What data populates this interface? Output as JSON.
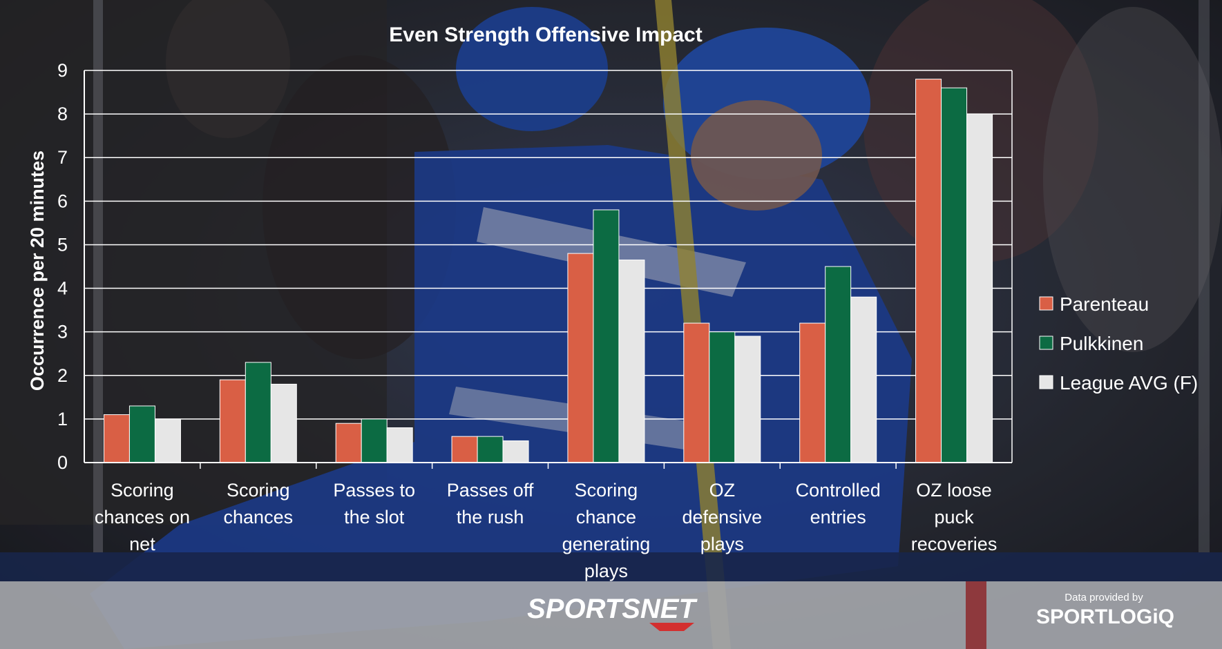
{
  "chart_data": {
    "type": "bar",
    "title": "Even Strength Offensive Impact",
    "xlabel": "",
    "ylabel": "Occurrence per 20 minutes",
    "ylim": [
      0,
      9
    ],
    "yticks": [
      "0",
      "1",
      "2",
      "3",
      "4",
      "5",
      "6",
      "7",
      "8",
      "9"
    ],
    "grid": true,
    "legend_position": "right",
    "categories": [
      [
        "Scoring",
        "chances on",
        "net"
      ],
      [
        "Scoring",
        "chances"
      ],
      [
        "Passes to",
        "the slot"
      ],
      [
        "Passes off",
        "the rush"
      ],
      [
        "Scoring",
        "chance",
        "generating",
        "plays"
      ],
      [
        "OZ",
        "defensive",
        "plays"
      ],
      [
        "Controlled",
        "entries"
      ],
      [
        "OZ loose",
        "puck",
        "recoveries"
      ]
    ],
    "series": [
      {
        "name": "Parenteau",
        "color": "#d95f45",
        "values": [
          1.1,
          1.9,
          0.9,
          0.6,
          4.8,
          3.2,
          3.2,
          8.8
        ]
      },
      {
        "name": "Pulkkinen",
        "color": "#0c6b43",
        "values": [
          1.3,
          2.3,
          1.0,
          0.6,
          5.8,
          3.0,
          4.5,
          8.6
        ]
      },
      {
        "name": "League AVG (F)",
        "color": "#e6e6e6",
        "values": [
          1.0,
          1.8,
          0.8,
          0.5,
          4.65,
          2.9,
          3.8,
          8.0
        ]
      }
    ]
  },
  "branding": {
    "logo": "SPORTSNET",
    "credit_line": "Data provided by",
    "credit_logo": "SPORTLOGiQ"
  }
}
